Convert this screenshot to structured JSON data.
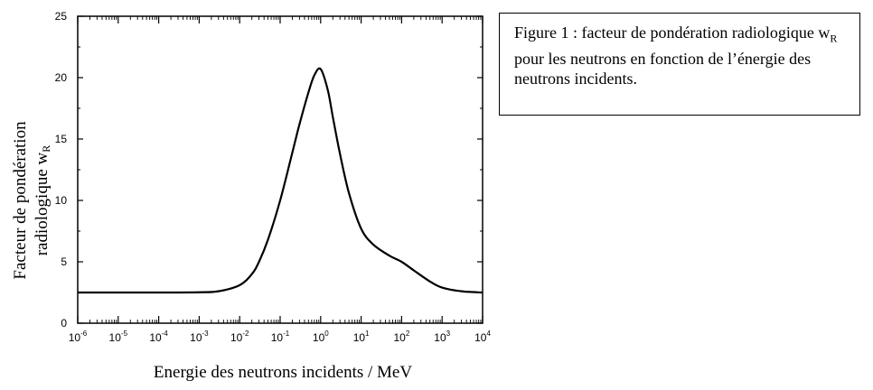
{
  "caption": {
    "part1": "Figure 1 : facteur de pondération radiologique w",
    "sub": "R",
    "part2": " pour les neutrons en fonction de l’énergie des neutrons incidents."
  },
  "chart_data": {
    "type": "line",
    "title": "",
    "xlabel": "Energie des neutrons incidents / MeV",
    "ylabel_line1": "Facteur de pondération",
    "ylabel_line2": "radiologique w",
    "ylabel_sub": "R",
    "x_scale": "log",
    "xlim": [
      1e-06,
      10000
    ],
    "ylim": [
      0,
      25
    ],
    "x_tick_labels": [
      {
        "base": "10",
        "exp": "-6"
      },
      {
        "base": "10",
        "exp": "-5"
      },
      {
        "base": "10",
        "exp": "-4"
      },
      {
        "base": "10",
        "exp": "-3"
      },
      {
        "base": "10",
        "exp": "-2"
      },
      {
        "base": "10",
        "exp": "-1"
      },
      {
        "base": "10",
        "exp": "0"
      },
      {
        "base": "10",
        "exp": "1"
      },
      {
        "base": "10",
        "exp": "2"
      },
      {
        "base": "10",
        "exp": "3"
      },
      {
        "base": "10",
        "exp": "4"
      }
    ],
    "y_tick_labels": [
      "0",
      "5",
      "10",
      "15",
      "20",
      "25"
    ],
    "grid": false,
    "legend": "none",
    "series": [
      {
        "color": "#000000",
        "x": [
          1e-06,
          1e-05,
          0.0001,
          0.001,
          0.003,
          0.01,
          0.02,
          0.03,
          0.05,
          0.1,
          0.2,
          0.3,
          0.5,
          0.7,
          1,
          1.5,
          2,
          3,
          5,
          10,
          20,
          50,
          100,
          200,
          500,
          1000,
          3000,
          10000
        ],
        "y": [
          2.5,
          2.5,
          2.5,
          2.52,
          2.6,
          3.1,
          4.0,
          5.0,
          6.8,
          10.0,
          13.9,
          16.2,
          18.8,
          20.2,
          20.7,
          19.0,
          16.8,
          13.8,
          10.6,
          7.7,
          6.4,
          5.5,
          5.0,
          4.3,
          3.4,
          2.9,
          2.6,
          2.5
        ]
      }
    ]
  }
}
